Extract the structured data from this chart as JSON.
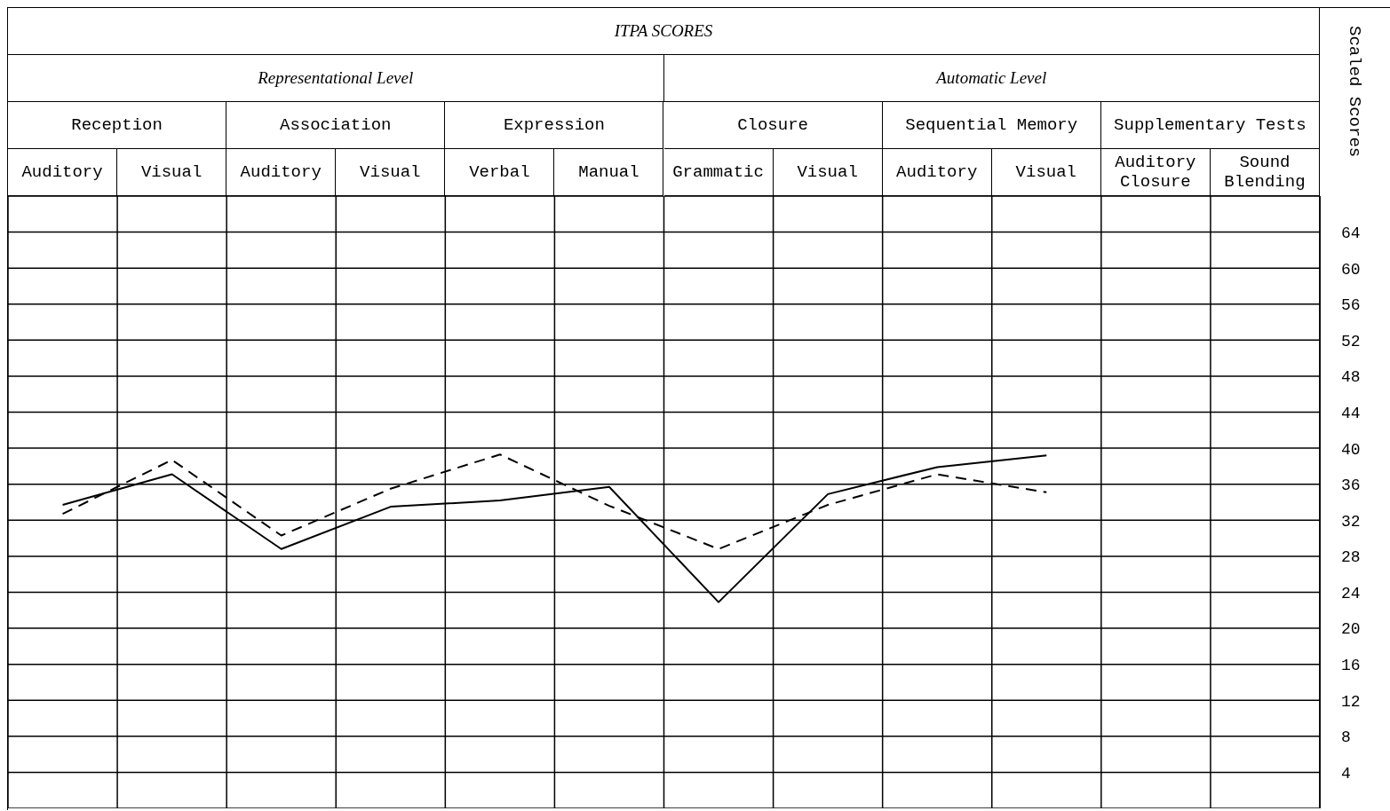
{
  "chart_data": {
    "type": "line",
    "title": "ITPA SCORES",
    "ylabel": "Scaled Scores",
    "annotations": [
      "Representational Level",
      "Automatic Level",
      "Reception",
      "Association",
      "Expression",
      "Closure",
      "Sequential Memory",
      "Supplementary Tests"
    ],
    "categories": [
      "Auditory",
      "Visual",
      "Auditory",
      "Visual",
      "Verbal",
      "Manual",
      "Grammatic",
      "Visual",
      "Auditory",
      "Visual",
      "Auditory Closure",
      "Sound Blending"
    ],
    "series": [
      {
        "color": "#000000",
        "line_style": "solid",
        "values": [
          33.7,
          37.1,
          28.8,
          33.5,
          34.2,
          35.7,
          22.9,
          34.9,
          37.9,
          39.2,
          null,
          null
        ]
      },
      {
        "color": "#000000",
        "line_style": "dashed",
        "values": [
          32.7,
          38.7,
          30.3,
          35.5,
          39.3,
          33.6,
          28.8,
          33.7,
          37.1,
          35.1,
          null,
          null
        ]
      }
    ],
    "ylim": [
      0,
      68
    ],
    "yticks": [
      4,
      8,
      12,
      16,
      20,
      24,
      28,
      32,
      36,
      40,
      44,
      48,
      52,
      56,
      60,
      64
    ],
    "grid": true,
    "marker": "none"
  }
}
